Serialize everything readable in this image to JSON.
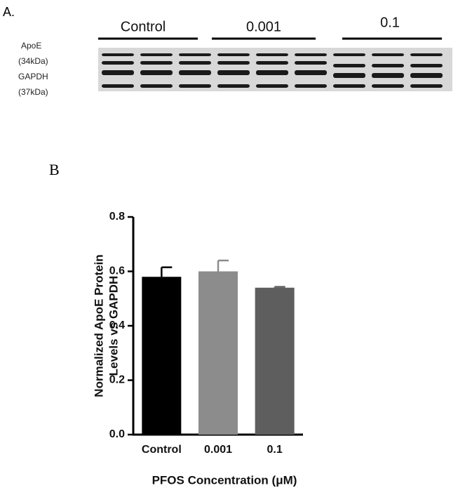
{
  "panel_a": {
    "label": "A.",
    "lanes": [
      "Control",
      "0.001",
      "0.1"
    ],
    "bands": [
      "ApoE",
      "(34kDa)",
      "GAPDH",
      "(37kDa)"
    ]
  },
  "panel_b": {
    "label": "B"
  },
  "chart_data": {
    "type": "bar",
    "categories": [
      "Control",
      "0.001",
      "0.1"
    ],
    "values": [
      0.58,
      0.6,
      0.54
    ],
    "errors": [
      0.035,
      0.04,
      0.003
    ],
    "colors": [
      "#000000",
      "#8c8c8c",
      "#5e5e5e"
    ],
    "ylabel": [
      "Normalized ApoE Protein",
      "Levels vs GAPDH"
    ],
    "xlabel": "PFOS Concentration (μM)",
    "ylim": [
      0,
      0.8
    ],
    "yticks": [
      {
        "value": 0,
        "label": "0.0"
      },
      0.2,
      0.4,
      0.6,
      0.8
    ],
    "grid": false
  }
}
